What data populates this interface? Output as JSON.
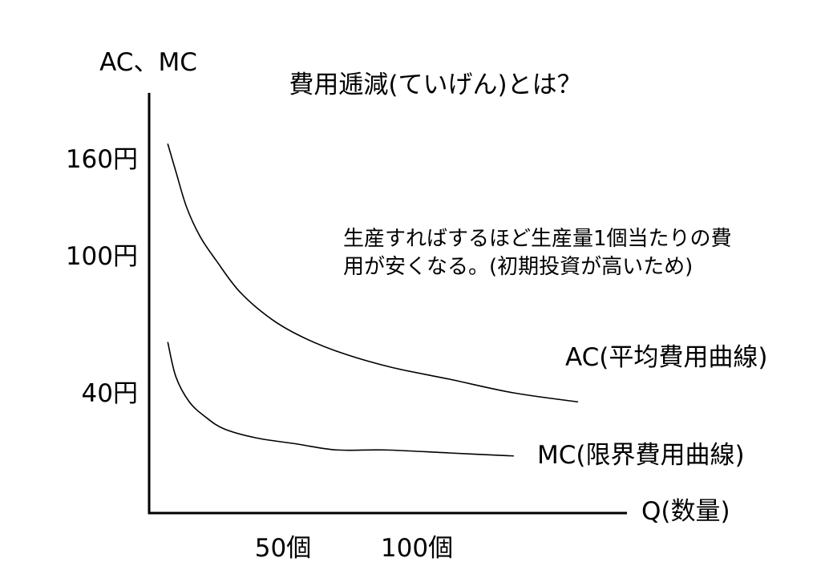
{
  "chart_data": {
    "type": "line",
    "title": "費用逓減(ていげん)とは？",
    "xlabel": "Q(数量)",
    "ylabel": "AC、MC",
    "xlim": [
      0,
      178
    ],
    "ylim": [
      0,
      200
    ],
    "grid": false,
    "legend": "right",
    "xticks": [
      {
        "value": 50,
        "label": "50個"
      },
      {
        "value": 100,
        "label": "100個"
      }
    ],
    "yticks": [
      {
        "value": 160,
        "label": "160円"
      },
      {
        "value": 100,
        "label": "100円"
      },
      {
        "value": 40,
        "label": "40円"
      }
    ],
    "series": [
      {
        "name": "AC(平均費用曲線)",
        "x": [
          7,
          10,
          14,
          19,
          25,
          34,
          46,
          58,
          73,
          91,
          112,
          136,
          160
        ],
        "y": [
          169,
          152,
          130,
          112,
          98,
          84,
          72,
          64,
          57,
          51,
          46,
          40,
          37
        ]
      },
      {
        "name": "MC(限界費用曲線)",
        "x": [
          7,
          10,
          15,
          21,
          28,
          40,
          55,
          70,
          88,
          112,
          136
        ],
        "y": [
          62,
          47,
          37,
          32,
          28,
          25,
          23,
          21,
          21,
          20,
          19
        ]
      }
    ],
    "annotation": {
      "lines": [
        "生産すればするほど生産量1個当たりの費",
        "用が安くなる。(初期投資が高いため)"
      ]
    },
    "colors": {
      "line": "#000000",
      "axis": "#000000",
      "text": "#000000",
      "background": "#ffffff"
    }
  }
}
